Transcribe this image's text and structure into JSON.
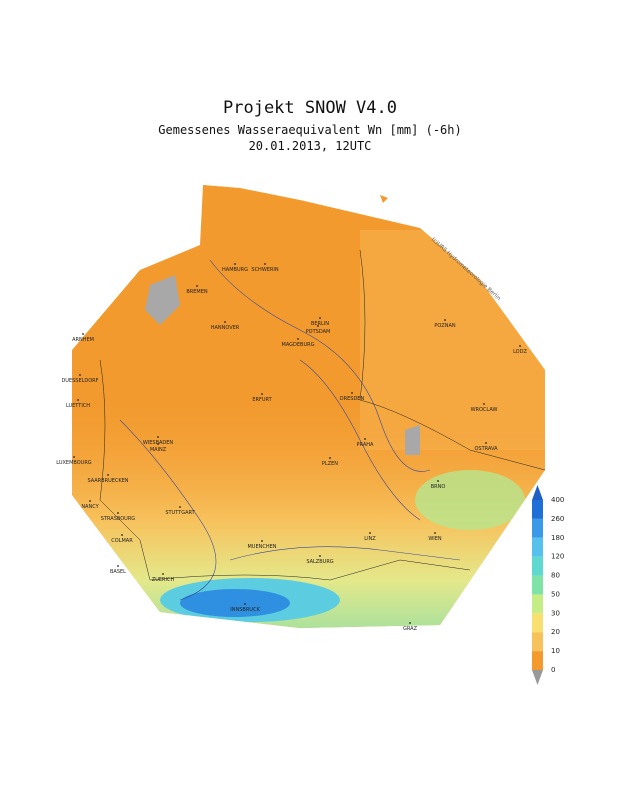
{
  "header": {
    "title": "Projekt SNOW V4.0",
    "subtitle": "Gemessenes Wasseraequivalent Wn [mm] (-6h)",
    "date": "20.01.2013, 12UTC"
  },
  "copyright": "(c)URS Hydrometeorologie Berlin",
  "cities": [
    "HAMBURG",
    "SCHWERIN",
    "BREMEN",
    "BERLIN",
    "POTSDAM",
    "HANNOVER",
    "MAGDEBURG",
    "POZNAN",
    "LODZ",
    "ARNHEM",
    "DUESSELDORF",
    "LUETTICH",
    "ERFURT",
    "DRESDEN",
    "WROCLAW",
    "WIESBADEN",
    "MAINZ",
    "PRAHA",
    "OSTRAVA",
    "LUXEMBOURG",
    "PLZEN",
    "SAARBRUECKEN",
    "BRNO",
    "NANCY",
    "STRASBOURG",
    "STUTTGART",
    "COLMAR",
    "LINZ",
    "WIEN",
    "MUENCHEN",
    "SALZBURG",
    "BASEL",
    "ZUERICH",
    "INNSBRUCK",
    "GRAZ"
  ],
  "legend": {
    "labels": [
      "400",
      "260",
      "180",
      "120",
      "80",
      "50",
      "30",
      "20",
      "10",
      "0"
    ]
  }
}
